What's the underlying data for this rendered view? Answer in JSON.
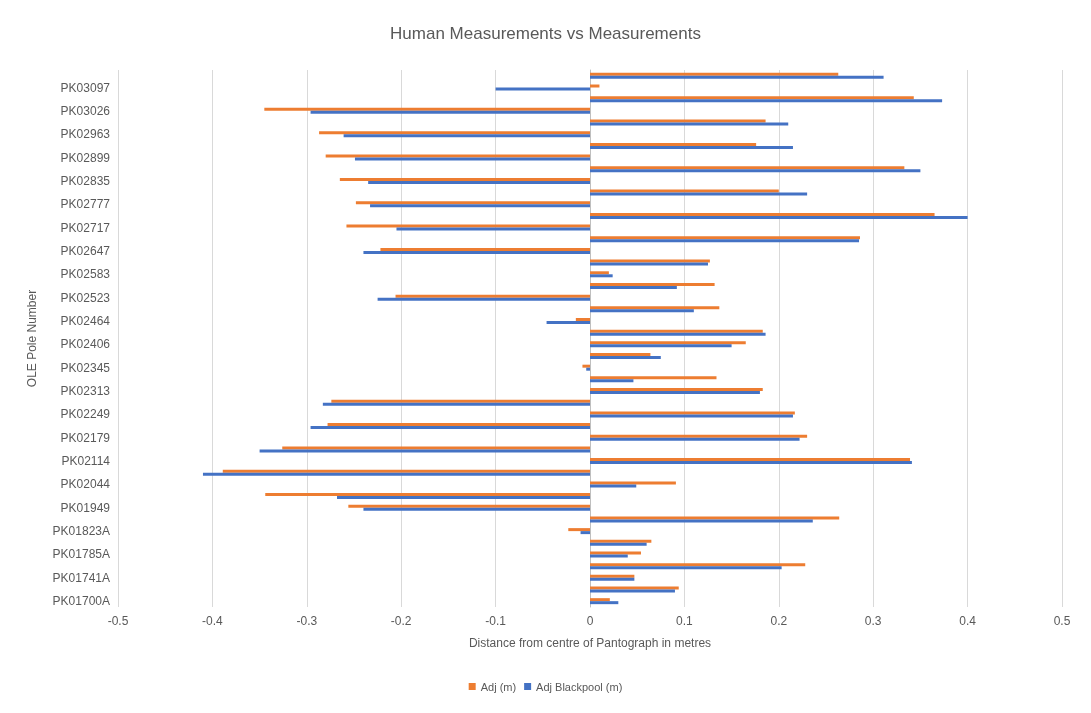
{
  "chart_data": {
    "type": "bar",
    "orientation": "horizontal",
    "title": "Human Measurements vs Measurements",
    "xlabel": "Distance from centre of Pantograph in metres",
    "ylabel": "OLE Pole Number",
    "categories": [
      null,
      "PK03097",
      null,
      "PK03026",
      null,
      "PK02963",
      null,
      "PK02899",
      null,
      "PK02835",
      null,
      "PK02777",
      null,
      "PK02717",
      null,
      "PK02647",
      null,
      "PK02583",
      null,
      "PK02523",
      null,
      "PK02464",
      null,
      "PK02406",
      null,
      "PK02345",
      null,
      "PK02313",
      null,
      "PK02249",
      null,
      "PK02179",
      null,
      "PK02114",
      null,
      "PK02044",
      null,
      "PK01949",
      null,
      "PK01823A",
      null,
      "PK01785A",
      null,
      "PK01741A",
      null,
      "PK01700A"
    ],
    "series": [
      {
        "name": "Adj (m)",
        "color": "#ed7d31",
        "values": [
          0.263,
          0.01,
          0.343,
          -0.345,
          0.186,
          -0.287,
          0.176,
          -0.28,
          0.333,
          -0.265,
          0.2,
          -0.248,
          0.365,
          -0.258,
          0.286,
          -0.222,
          0.127,
          0.02,
          0.132,
          -0.206,
          0.137,
          -0.015,
          0.183,
          0.165,
          0.064,
          -0.008,
          0.134,
          0.183,
          -0.274,
          0.217,
          -0.278,
          0.23,
          -0.326,
          0.339,
          -0.389,
          0.091,
          -0.344,
          -0.256,
          0.264,
          -0.023,
          0.065,
          0.054,
          0.228,
          0.047,
          0.094,
          0.021
        ]
      },
      {
        "name": "Adj Blackpool (m)",
        "color": "#4472c4",
        "values": [
          0.311,
          -0.1,
          0.373,
          -0.296,
          0.21,
          -0.261,
          0.215,
          -0.249,
          0.35,
          -0.235,
          0.23,
          -0.233,
          0.4,
          -0.205,
          0.285,
          -0.24,
          0.125,
          0.024,
          0.092,
          -0.225,
          0.11,
          -0.046,
          0.186,
          0.15,
          0.075,
          -0.004,
          0.046,
          0.18,
          -0.283,
          0.215,
          -0.296,
          0.222,
          -0.35,
          0.341,
          -0.41,
          0.049,
          -0.268,
          -0.24,
          0.236,
          -0.01,
          0.06,
          0.04,
          0.203,
          0.047,
          0.09,
          0.03
        ]
      }
    ],
    "xlim": [
      -0.5,
      0.5
    ],
    "xticks": [
      -0.5,
      -0.4,
      -0.3,
      -0.2,
      -0.1,
      0,
      0.1,
      0.2,
      0.3,
      0.4,
      0.5
    ],
    "grid": "x",
    "legend": "bottom"
  }
}
